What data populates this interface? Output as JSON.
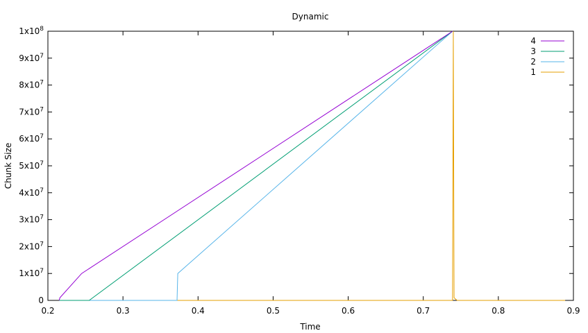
{
  "chart_data": {
    "type": "line",
    "title": "Dynamic",
    "xlabel": "Time",
    "ylabel": "Chunk Size",
    "xlim": [
      0.2,
      0.9
    ],
    "ylim": [
      0,
      100000000
    ],
    "x_ticks": [
      "0.2",
      "0.3",
      "0.4",
      "0.5",
      "0.6",
      "0.7",
      "0.8",
      "0.9"
    ],
    "y_ticks": [
      {
        "base": "0",
        "exp": ""
      },
      {
        "base": "1x10",
        "exp": "7"
      },
      {
        "base": "2x10",
        "exp": "7"
      },
      {
        "base": "3x10",
        "exp": "7"
      },
      {
        "base": "4x10",
        "exp": "7"
      },
      {
        "base": "5x10",
        "exp": "7"
      },
      {
        "base": "6x10",
        "exp": "7"
      },
      {
        "base": "7x10",
        "exp": "7"
      },
      {
        "base": "8x10",
        "exp": "7"
      },
      {
        "base": "9x10",
        "exp": "7"
      },
      {
        "base": "1x10",
        "exp": "8"
      }
    ],
    "grid": false,
    "legend_position": "top-right",
    "series": [
      {
        "name": "4",
        "color": "#9400d3",
        "points": [
          [
            0.215,
            0
          ],
          [
            0.216,
            1000000
          ],
          [
            0.245,
            10000000
          ],
          [
            0.739,
            100000000
          ]
        ]
      },
      {
        "name": "3",
        "color": "#009e73",
        "points": [
          [
            0.215,
            0
          ],
          [
            0.255,
            0
          ],
          [
            0.739,
            100000000
          ]
        ]
      },
      {
        "name": "2",
        "color": "#56b4e9",
        "points": [
          [
            0.216,
            0
          ],
          [
            0.372,
            0
          ],
          [
            0.373,
            10000000
          ],
          [
            0.739,
            100000000
          ]
        ]
      },
      {
        "name": "1",
        "color": "#e69f00",
        "points": [
          [
            0.216,
            0
          ],
          [
            0.739,
            0
          ],
          [
            0.74,
            98000000
          ],
          [
            0.74,
            100000000
          ],
          [
            0.741,
            1000000
          ],
          [
            0.745,
            0
          ],
          [
            0.889,
            0
          ]
        ]
      }
    ]
  }
}
